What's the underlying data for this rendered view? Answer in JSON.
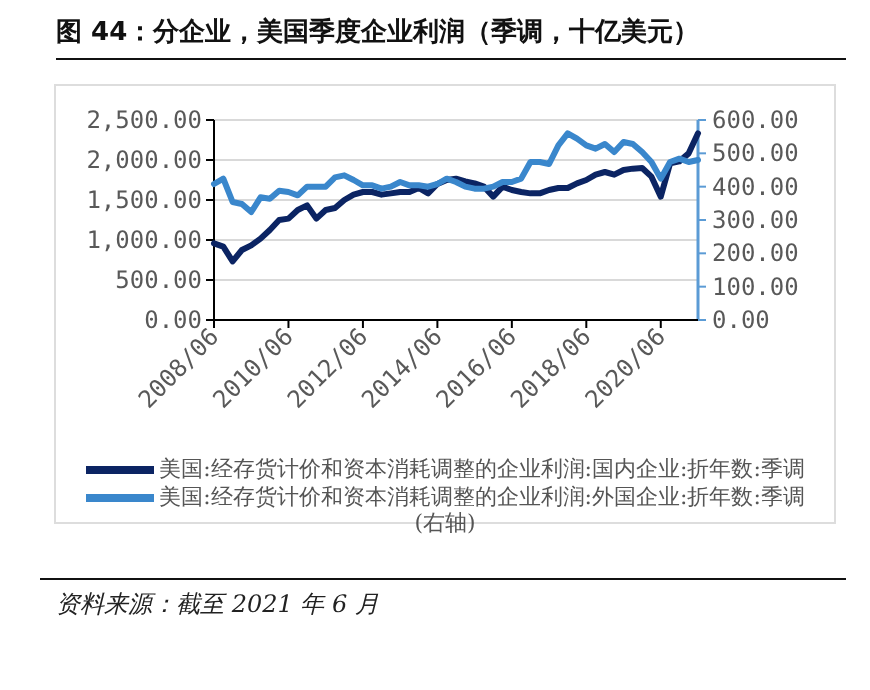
{
  "chart_data": {
    "type": "line",
    "title": "图 44：分企业，美国季度企业利润（季调，十亿美元）",
    "annotations": [
      "资料来源：截至 2021 年 6 月"
    ],
    "categories": [
      "2008/06",
      null,
      null,
      null,
      null,
      null,
      null,
      null,
      "2010/06",
      null,
      null,
      null,
      null,
      null,
      null,
      null,
      "2012/06",
      null,
      null,
      null,
      null,
      null,
      null,
      null,
      "2014/06",
      null,
      null,
      null,
      null,
      null,
      null,
      null,
      "2016/06",
      null,
      null,
      null,
      null,
      null,
      null,
      null,
      "2018/06",
      null,
      null,
      null,
      null,
      null,
      null,
      null,
      "2020/06",
      null,
      null,
      null,
      null
    ],
    "series": [
      {
        "name": "美国:经存货计价和资本消耗调整的企业利润:国内企业:折年数:季调",
        "color": "#0b2463",
        "values": [
          958,
          917,
          733,
          875,
          933,
          1017,
          1125,
          1250,
          1267,
          1375,
          1433,
          1267,
          1375,
          1400,
          1500,
          1567,
          1600,
          1600,
          1567,
          1583,
          1600,
          1600,
          1650,
          1583,
          1700,
          1750,
          1767,
          1733,
          1708,
          1667,
          1542,
          1667,
          1625,
          1600,
          1583,
          1583,
          1625,
          1650,
          1650,
          1708,
          1750,
          1817,
          1850,
          1817,
          1875,
          1892,
          1900,
          1792,
          1542,
          1958,
          1983,
          2083,
          2333
        ]
      },
      {
        "name": "美国:经存货计价和资本消耗调整的企业利润:外国企业:折年数:季调(右轴)",
        "color": "#3a87cc",
        "axis": "y2",
        "values": [
          408,
          424,
          354,
          348,
          324,
          368,
          364,
          388,
          384,
          374,
          400,
          400,
          400,
          428,
          434,
          420,
          404,
          404,
          394,
          400,
          414,
          404,
          404,
          400,
          408,
          424,
          414,
          400,
          394,
          394,
          400,
          414,
          414,
          424,
          474,
          474,
          468,
          524,
          560,
          544,
          524,
          514,
          528,
          504,
          534,
          528,
          504,
          474,
          424,
          474,
          484,
          474,
          480
        ]
      }
    ],
    "ylim": [
      0,
      2500
    ],
    "yticks": [
      {
        "value": 0,
        "label": "0.00"
      },
      {
        "value": 500,
        "label": "500.00"
      },
      {
        "value": 1000,
        "label": "1,000.00"
      },
      {
        "value": 1500,
        "label": "1,500.00"
      },
      {
        "value": 2000,
        "label": "2,000.00"
      },
      {
        "value": 2500,
        "label": "2,500.00"
      }
    ],
    "y2lim": [
      0,
      600
    ],
    "y2ticks": [
      {
        "value": 0,
        "label": "0.00"
      },
      {
        "value": 100,
        "label": "100.00"
      },
      {
        "value": 200,
        "label": "200.00"
      },
      {
        "value": 300,
        "label": "300.00"
      },
      {
        "value": 400,
        "label": "400.00"
      },
      {
        "value": 500,
        "label": "500.00"
      },
      {
        "value": 600,
        "label": "600.00"
      }
    ],
    "grid": "y",
    "legend": "bottom"
  }
}
